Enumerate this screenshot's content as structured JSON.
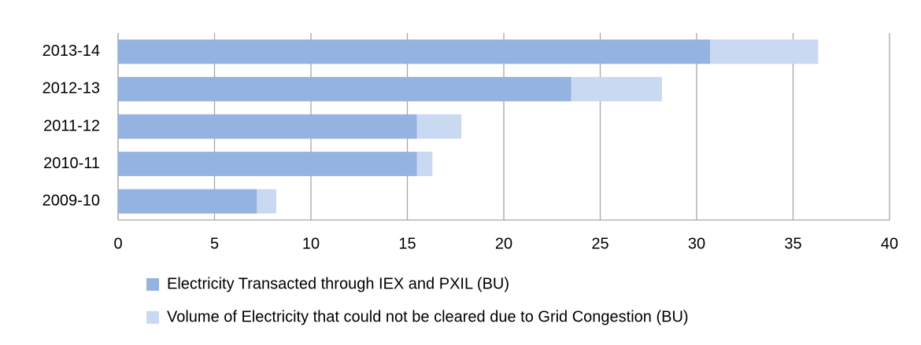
{
  "chart_data": {
    "type": "stacked-barh",
    "categories": [
      "2013-14",
      "2012-13",
      "2011-12",
      "2010-11",
      "2009-10"
    ],
    "series": [
      {
        "name": "Electricity Transacted through IEX and PXIL (BU)",
        "color": "#95b3e0",
        "values": [
          30.7,
          23.5,
          15.5,
          15.5,
          7.2
        ]
      },
      {
        "name": "Volume of Electricity that could not be cleared due to Grid Congestion (BU)",
        "color": "#c9d9f1",
        "values": [
          5.6,
          4.7,
          2.3,
          0.8,
          1.0
        ]
      }
    ],
    "xlim": [
      0,
      40
    ],
    "xticks": [
      0,
      5,
      10,
      15,
      20,
      25,
      30,
      35,
      40
    ],
    "grid": true
  }
}
